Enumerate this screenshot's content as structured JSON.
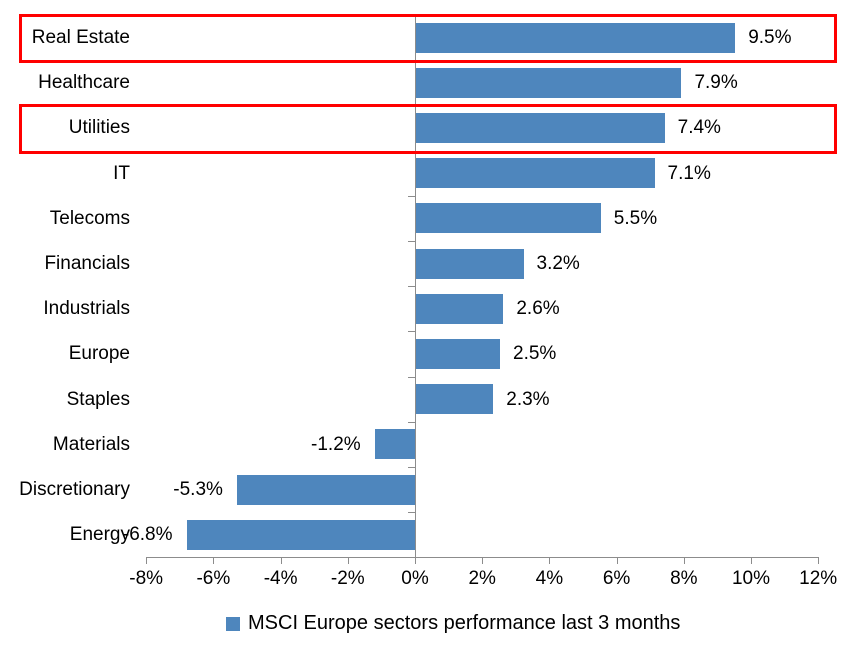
{
  "chart_data": {
    "type": "bar",
    "orientation": "horizontal",
    "categories": [
      "Real Estate",
      "Healthcare",
      "Utilities",
      "IT",
      "Telecoms",
      "Financials",
      "Industrials",
      "Europe",
      "Staples",
      "Materials",
      "Discretionary",
      "Energy"
    ],
    "values": [
      9.5,
      7.9,
      7.4,
      7.1,
      5.5,
      3.2,
      2.6,
      2.5,
      2.3,
      -1.2,
      -5.3,
      -6.8
    ],
    "value_labels": [
      "9.5%",
      "7.9%",
      "7.4%",
      "7.1%",
      "5.5%",
      "3.2%",
      "2.6%",
      "2.5%",
      "2.3%",
      "-1.2%",
      "-5.3%",
      "-6.8%"
    ],
    "x_tick_values": [
      -8,
      -6,
      -4,
      -2,
      0,
      2,
      4,
      6,
      8,
      10,
      12
    ],
    "x_tick_labels": [
      "-8%",
      "-6%",
      "-4%",
      "-2%",
      "0%",
      "2%",
      "4%",
      "6%",
      "8%",
      "10%",
      "12%"
    ],
    "xlim": [
      -8,
      12
    ],
    "grid": false,
    "legend": "MSCI Europe sectors performance last 3 months",
    "legend_position": "bottom",
    "highlighted_categories": [
      "Real Estate",
      "Utilities"
    ],
    "colors": {
      "bar": "#4E86BD",
      "axis": "#8C8C8C",
      "text": "#000000",
      "highlight_box": "#FF0000",
      "background": "#FFFFFF"
    }
  }
}
